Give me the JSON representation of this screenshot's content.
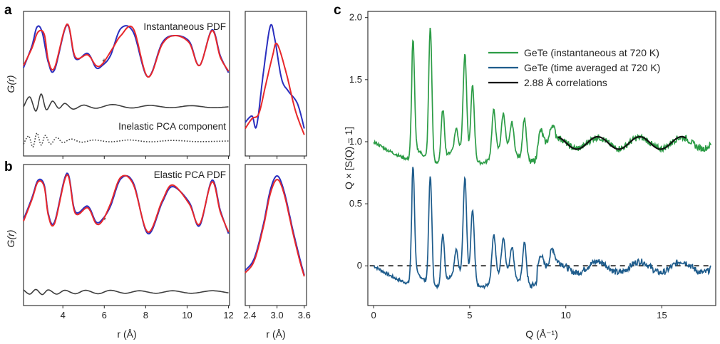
{
  "panel_labels": [
    "a",
    "b",
    "c"
  ],
  "colors": {
    "instantaneous": "#e8282b",
    "time_averaged": "#2a2fbf",
    "difference": "#3d3d3d",
    "green": "#2c9c46",
    "teal": "#1e5c8c",
    "fit": "#111111"
  },
  "chart_data": [
    {
      "id": "a-main",
      "type": "line",
      "title": "",
      "xlabel": "",
      "ylabel": "G(r)",
      "xlim": [
        2.1,
        12.05
      ],
      "annotations": [
        "Instantaneous PDF",
        "Inelastic PCA component",
        "*"
      ],
      "series": [
        {
          "role": "time_averaged",
          "points": [
            [
              2.1,
              0.35
            ],
            [
              2.5,
              0.65
            ],
            [
              2.75,
              0.92
            ],
            [
              3.0,
              0.85
            ],
            [
              3.3,
              0.42
            ],
            [
              3.6,
              0.32
            ],
            [
              4.2,
              0.95
            ],
            [
              4.6,
              0.48
            ],
            [
              5.2,
              0.55
            ],
            [
              5.6,
              0.35
            ],
            [
              5.9,
              0.38
            ],
            [
              6.3,
              0.52
            ],
            [
              6.8,
              0.9
            ],
            [
              7.4,
              0.85
            ],
            [
              8.1,
              0.22
            ],
            [
              8.8,
              0.7
            ],
            [
              9.4,
              0.8
            ],
            [
              10.1,
              0.72
            ],
            [
              10.6,
              0.38
            ],
            [
              11.2,
              0.88
            ],
            [
              11.6,
              0.52
            ],
            [
              12.0,
              0.28
            ]
          ]
        },
        {
          "role": "instantaneous",
          "points": [
            [
              2.1,
              0.38
            ],
            [
              2.5,
              0.62
            ],
            [
              2.8,
              0.85
            ],
            [
              3.1,
              0.82
            ],
            [
              3.3,
              0.45
            ],
            [
              3.6,
              0.35
            ],
            [
              4.2,
              0.96
            ],
            [
              4.6,
              0.5
            ],
            [
              5.2,
              0.53
            ],
            [
              5.6,
              0.38
            ],
            [
              5.9,
              0.4
            ],
            [
              6.4,
              0.62
            ],
            [
              6.8,
              0.8
            ],
            [
              7.4,
              0.9
            ],
            [
              8.1,
              0.22
            ],
            [
              8.8,
              0.68
            ],
            [
              9.4,
              0.8
            ],
            [
              10.1,
              0.7
            ],
            [
              10.6,
              0.38
            ],
            [
              11.2,
              0.87
            ],
            [
              11.6,
              0.5
            ],
            [
              12.0,
              0.3
            ]
          ]
        },
        {
          "role": "difference",
          "style": "solid",
          "points": [
            [
              2.1,
              0.0
            ],
            [
              2.4,
              0.35
            ],
            [
              2.7,
              -0.15
            ],
            [
              2.95,
              0.45
            ],
            [
              3.2,
              -0.1
            ],
            [
              3.5,
              0.2
            ],
            [
              3.8,
              -0.05
            ],
            [
              4.1,
              0.12
            ],
            [
              4.5,
              -0.08
            ],
            [
              5.0,
              0.06
            ],
            [
              5.6,
              -0.05
            ],
            [
              6.4,
              0.08
            ],
            [
              7.3,
              -0.04
            ],
            [
              8.2,
              0.05
            ],
            [
              9.2,
              -0.03
            ],
            [
              10.2,
              0.04
            ],
            [
              11.2,
              -0.03
            ],
            [
              12.0,
              0.0
            ]
          ]
        },
        {
          "role": "inelastic",
          "style": "dotted",
          "points": [
            [
              2.1,
              -0.15
            ],
            [
              2.35,
              0.25
            ],
            [
              2.55,
              -0.3
            ],
            [
              2.75,
              0.4
            ],
            [
              2.95,
              -0.2
            ],
            [
              3.15,
              0.28
            ],
            [
              3.4,
              -0.15
            ],
            [
              3.7,
              0.18
            ],
            [
              4.0,
              -0.08
            ],
            [
              4.4,
              0.1
            ],
            [
              4.9,
              -0.06
            ],
            [
              5.5,
              0.05
            ],
            [
              6.3,
              -0.04
            ],
            [
              7.2,
              0.05
            ],
            [
              8.2,
              -0.04
            ],
            [
              9.3,
              0.03
            ],
            [
              10.5,
              -0.03
            ],
            [
              12.0,
              0.0
            ]
          ]
        }
      ]
    },
    {
      "id": "a-zoom",
      "type": "line",
      "title": "",
      "xlim": [
        2.3,
        3.65
      ],
      "series": [
        {
          "role": "time_averaged",
          "points": [
            [
              2.3,
              0.15
            ],
            [
              2.45,
              0.2
            ],
            [
              2.55,
              0.12
            ],
            [
              2.7,
              0.55
            ],
            [
              2.85,
              0.92
            ],
            [
              2.95,
              0.82
            ],
            [
              3.1,
              0.5
            ],
            [
              3.25,
              0.4
            ],
            [
              3.45,
              0.3
            ],
            [
              3.6,
              0.1
            ]
          ]
        },
        {
          "role": "instantaneous",
          "points": [
            [
              2.3,
              0.1
            ],
            [
              2.45,
              0.18
            ],
            [
              2.6,
              0.22
            ],
            [
              2.75,
              0.45
            ],
            [
              2.9,
              0.68
            ],
            [
              3.0,
              0.78
            ],
            [
              3.2,
              0.55
            ],
            [
              3.4,
              0.25
            ],
            [
              3.6,
              0.05
            ]
          ]
        }
      ]
    },
    {
      "id": "b-main",
      "type": "line",
      "title": "",
      "xlabel": "r (Å)",
      "ylabel": "G(r)",
      "xlim": [
        2.1,
        12.05
      ],
      "xticks": [
        4,
        6,
        8,
        10,
        12
      ],
      "annotations": [
        "Elastic PCA PDF",
        "*"
      ],
      "series": [
        {
          "role": "time_averaged",
          "points": [
            [
              2.1,
              0.38
            ],
            [
              2.5,
              0.65
            ],
            [
              2.8,
              0.88
            ],
            [
              3.1,
              0.82
            ],
            [
              3.3,
              0.45
            ],
            [
              3.6,
              0.35
            ],
            [
              4.2,
              0.97
            ],
            [
              4.6,
              0.48
            ],
            [
              5.2,
              0.55
            ],
            [
              5.6,
              0.35
            ],
            [
              5.9,
              0.38
            ],
            [
              6.3,
              0.55
            ],
            [
              6.8,
              0.9
            ],
            [
              7.4,
              0.85
            ],
            [
              8.1,
              0.2
            ],
            [
              8.8,
              0.6
            ],
            [
              9.3,
              0.8
            ],
            [
              10.1,
              0.6
            ],
            [
              10.6,
              0.3
            ],
            [
              11.2,
              0.88
            ],
            [
              11.6,
              0.5
            ],
            [
              12.0,
              0.2
            ]
          ]
        },
        {
          "role": "instantaneous",
          "points": [
            [
              2.1,
              0.36
            ],
            [
              2.5,
              0.63
            ],
            [
              2.8,
              0.86
            ],
            [
              3.1,
              0.8
            ],
            [
              3.3,
              0.43
            ],
            [
              3.6,
              0.33
            ],
            [
              4.2,
              0.95
            ],
            [
              4.6,
              0.46
            ],
            [
              5.2,
              0.53
            ],
            [
              5.6,
              0.33
            ],
            [
              5.9,
              0.36
            ],
            [
              6.3,
              0.58
            ],
            [
              6.8,
              0.92
            ],
            [
              7.4,
              0.83
            ],
            [
              8.1,
              0.22
            ],
            [
              8.8,
              0.62
            ],
            [
              9.3,
              0.82
            ],
            [
              10.1,
              0.58
            ],
            [
              10.6,
              0.32
            ],
            [
              11.2,
              0.86
            ],
            [
              11.6,
              0.48
            ],
            [
              12.0,
              0.22
            ]
          ]
        },
        {
          "role": "difference",
          "style": "solid",
          "points": [
            [
              2.1,
              0.05
            ],
            [
              2.4,
              -0.05
            ],
            [
              2.7,
              0.06
            ],
            [
              3.0,
              -0.06
            ],
            [
              3.3,
              0.05
            ],
            [
              3.7,
              -0.05
            ],
            [
              4.1,
              0.04
            ],
            [
              4.6,
              -0.04
            ],
            [
              5.1,
              0.04
            ],
            [
              5.7,
              -0.04
            ],
            [
              6.3,
              0.04
            ],
            [
              7.0,
              -0.03
            ],
            [
              7.7,
              0.03
            ],
            [
              8.5,
              -0.03
            ],
            [
              9.3,
              0.03
            ],
            [
              10.2,
              -0.03
            ],
            [
              11.2,
              0.03
            ],
            [
              12.0,
              -0.02
            ]
          ]
        }
      ]
    },
    {
      "id": "b-zoom",
      "type": "line",
      "title": "",
      "xlabel": "r (Å)",
      "xlim": [
        2.3,
        3.65
      ],
      "xticks": [
        2.4,
        3.0,
        3.6
      ],
      "series": [
        {
          "role": "time_averaged",
          "points": [
            [
              2.3,
              0.12
            ],
            [
              2.5,
              0.22
            ],
            [
              2.7,
              0.5
            ],
            [
              2.85,
              0.78
            ],
            [
              3.0,
              0.9
            ],
            [
              3.15,
              0.78
            ],
            [
              3.35,
              0.45
            ],
            [
              3.5,
              0.22
            ],
            [
              3.6,
              0.08
            ]
          ]
        },
        {
          "role": "instantaneous",
          "points": [
            [
              2.3,
              0.1
            ],
            [
              2.5,
              0.2
            ],
            [
              2.7,
              0.48
            ],
            [
              2.85,
              0.75
            ],
            [
              3.0,
              0.87
            ],
            [
              3.15,
              0.76
            ],
            [
              3.35,
              0.43
            ],
            [
              3.5,
              0.2
            ],
            [
              3.6,
              0.07
            ]
          ]
        }
      ]
    },
    {
      "id": "c",
      "type": "line",
      "title": "",
      "xlabel": "Q (Å⁻¹)",
      "ylabel": "Q × [S(Q) − 1]",
      "xlim": [
        -0.3,
        17.8
      ],
      "ylim": [
        -0.32,
        2.05
      ],
      "xticks": [
        0,
        5,
        10,
        15
      ],
      "yticks": [
        0,
        0.5,
        1.0,
        1.5,
        2.0
      ],
      "ytick_labels": [
        "0",
        "0.5",
        "1.0",
        "1.5",
        "2.0"
      ],
      "legend": {
        "position": "top-right",
        "entries": [
          "GeTe (instantaneous at 720 K)",
          "GeTe (time averaged at 720 K)",
          "2.88 Å correlations"
        ]
      },
      "baseline": {
        "style": "dashed",
        "y": 0
      },
      "series": [
        {
          "name": "GeTe (instantaneous at 720 K)",
          "role": "green",
          "offset": 1.0,
          "peaks": [
            [
              2.05,
              1.8
            ],
            [
              2.95,
              2.0
            ],
            [
              3.6,
              1.32
            ],
            [
              4.3,
              1.08
            ],
            [
              4.75,
              1.7
            ],
            [
              5.15,
              1.5
            ],
            [
              6.25,
              1.28
            ],
            [
              6.75,
              1.2
            ],
            [
              7.2,
              1.15
            ],
            [
              7.85,
              1.27
            ],
            [
              8.7,
              1.05
            ],
            [
              9.3,
              1.03
            ]
          ]
        },
        {
          "name": "GeTe (time averaged at 720 K)",
          "role": "teal",
          "offset": 0.0,
          "peaks": [
            [
              2.05,
              0.78
            ],
            [
              2.95,
              0.8
            ],
            [
              3.6,
              0.32
            ],
            [
              4.3,
              0.1
            ],
            [
              4.75,
              0.7
            ],
            [
              5.15,
              0.5
            ],
            [
              6.25,
              0.28
            ],
            [
              6.75,
              0.2
            ],
            [
              7.2,
              0.15
            ],
            [
              7.85,
              0.27
            ],
            [
              8.7,
              0.05
            ],
            [
              9.3,
              0.03
            ]
          ]
        },
        {
          "name": "2.88 Å correlations",
          "role": "fit",
          "x_range": [
            9.6,
            16.3
          ],
          "offset": 1.0,
          "amplitude": 0.05,
          "r": 2.88
        }
      ]
    }
  ]
}
